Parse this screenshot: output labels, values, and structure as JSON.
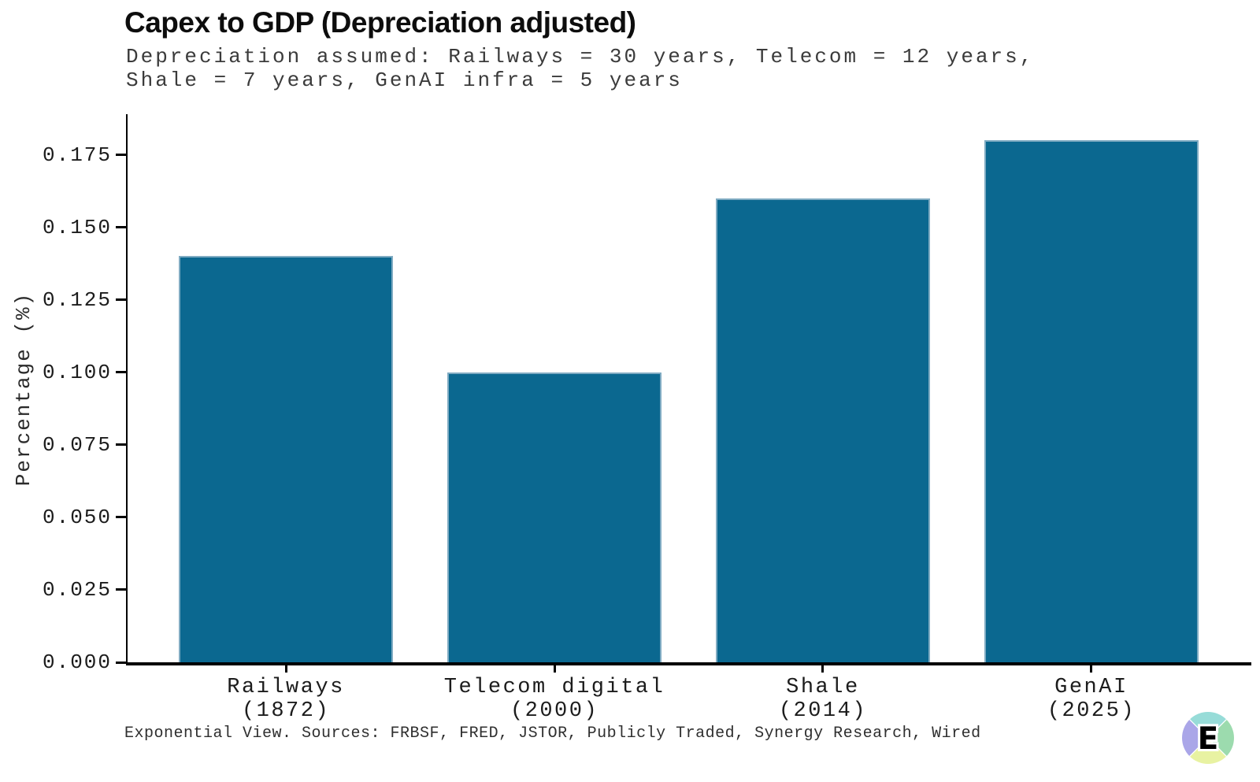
{
  "chart_data": {
    "type": "bar",
    "title": "Capex to GDP (Depreciation adjusted)",
    "subtitle_lines": [
      "Depreciation assumed: Railways = 30 years, Telecom = 12 years,",
      "Shale = 7 years, GenAI infra = 5 years"
    ],
    "categories": [
      "Railways",
      "Telecom digital",
      "Shale",
      "GenAI"
    ],
    "category_years": [
      "(1872)",
      "(2000)",
      "(2014)",
      "(2025)"
    ],
    "values": [
      0.14,
      0.1,
      0.16,
      0.18
    ],
    "xlabel": "",
    "ylabel": "Percentage (%)",
    "ylim": [
      0,
      0.189
    ],
    "yticks": [
      0.0,
      0.025,
      0.05,
      0.075,
      0.1,
      0.125,
      0.15,
      0.175
    ],
    "ytick_labels": [
      "0.000",
      "0.025",
      "0.050",
      "0.075",
      "0.100",
      "0.125",
      "0.150",
      "0.175"
    ],
    "grid": false,
    "legend": "none",
    "bar_color": "#0b6890",
    "bar_edge_color": "#7fabc2"
  },
  "footer": {
    "text": "Exponential View. Sources: FRBSF, FRED, JSTOR, Publicly Traded, Synergy Research, Wired"
  },
  "branding": {
    "logo_letter": "E",
    "logo_colors": {
      "top": "#97dcd8",
      "right": "#9cdbae",
      "bottom": "#e8f2a2",
      "left": "#aaa6e8"
    }
  },
  "colors": {
    "background": "#ffffff",
    "axis": "#000000",
    "title_text": "#0d0d0d",
    "subtitle_text": "#3b3b3b",
    "footer_text": "#2f2f2f"
  }
}
